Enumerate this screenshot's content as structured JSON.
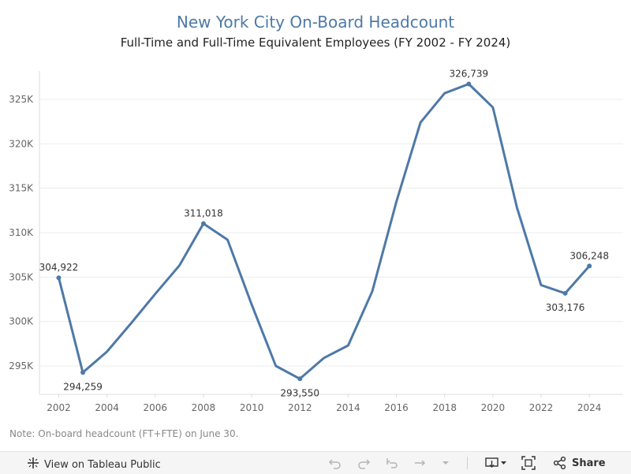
{
  "chart_data": {
    "type": "line",
    "title": "New York City On-Board Headcount",
    "subtitle": "Full-Time and Full-Time Equivalent Employees (FY 2002 - FY 2024)",
    "xlabel": "",
    "ylabel": "",
    "x": [
      2002,
      2003,
      2004,
      2005,
      2006,
      2007,
      2008,
      2009,
      2010,
      2011,
      2012,
      2013,
      2014,
      2015,
      2016,
      2017,
      2018,
      2019,
      2020,
      2021,
      2022,
      2023,
      2024
    ],
    "values": [
      304922,
      294259,
      296600,
      299800,
      303100,
      306300,
      311018,
      309200,
      301900,
      295000,
      293550,
      295900,
      297300,
      303400,
      313500,
      322400,
      325700,
      326739,
      324100,
      312800,
      304100,
      303176,
      306248
    ],
    "xlim": [
      2001.2,
      2025.4
    ],
    "ylim": [
      291800,
      328200
    ],
    "x_ticks": [
      2002,
      2004,
      2006,
      2008,
      2010,
      2012,
      2014,
      2016,
      2018,
      2020,
      2022,
      2024
    ],
    "x_tick_labels": [
      "2002",
      "2004",
      "2006",
      "2008",
      "2010",
      "2012",
      "2014",
      "2016",
      "2018",
      "2020",
      "2022",
      "2024"
    ],
    "y_ticks": [
      295000,
      300000,
      305000,
      310000,
      315000,
      320000,
      325000
    ],
    "y_tick_labels": [
      "295K",
      "300K",
      "305K",
      "310K",
      "315K",
      "320K",
      "325K"
    ],
    "labeled_points": [
      {
        "x": 2002,
        "y": 304922,
        "label": "304,922",
        "pos": "above"
      },
      {
        "x": 2003,
        "y": 294259,
        "label": "294,259",
        "pos": "below"
      },
      {
        "x": 2008,
        "y": 311018,
        "label": "311,018",
        "pos": "above"
      },
      {
        "x": 2012,
        "y": 293550,
        "label": "293,550",
        "pos": "below"
      },
      {
        "x": 2019,
        "y": 326739,
        "label": "326,739",
        "pos": "above"
      },
      {
        "x": 2023,
        "y": 303176,
        "label": "303,176",
        "pos": "below"
      },
      {
        "x": 2024,
        "y": 306248,
        "label": "306,248",
        "pos": "above"
      }
    ],
    "grid": true,
    "line_color": "#4e79a7"
  },
  "note": "Note: On-board headcount (FT+FTE) on June 30.",
  "toolbar": {
    "view_label": "View on Tableau Public",
    "share_label": "Share"
  },
  "colors": {
    "title": "#4e79a7",
    "series": "#4e79a7"
  }
}
